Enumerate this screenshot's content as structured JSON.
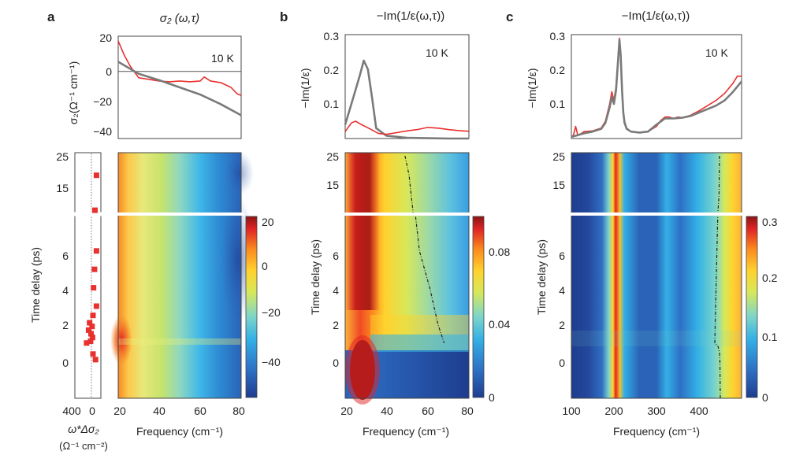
{
  "figure": {
    "panel_labels": [
      "a",
      "b",
      "c"
    ],
    "colorbar_a_ticks": [
      "20",
      "0",
      "−20",
      "−40"
    ],
    "colorbar_b_ticks": [
      "0.08",
      "0.04",
      "0"
    ],
    "colorbar_c_ticks": [
      "0.3",
      "0.2",
      "0.1",
      "0"
    ],
    "colors": {
      "red_trace": "#e8312f",
      "grey_trace": "#7a7a7a",
      "marker": "#e8312f",
      "break_line": "#ffffff",
      "colormap": [
        "#1e3d8f",
        "#2e6fc4",
        "#33b0e6",
        "#7fd6c8",
        "#d6e85a",
        "#ffd22e",
        "#fb8a1e",
        "#e02424",
        "#8c1515"
      ]
    }
  },
  "chart_data": [
    {
      "panel": "a",
      "type": "line",
      "title": "σ₂ (ω,τ)",
      "annotation": "10 K",
      "ylabel": "σ₂(Ω⁻¹ cm⁻¹)",
      "xlim": [
        20,
        80
      ],
      "ylim": [
        -42,
        22
      ],
      "yticks": [
        "20",
        "0",
        "−20",
        "−40"
      ],
      "hline": 0,
      "series": [
        {
          "color": "red",
          "x": [
            20,
            23,
            26,
            30,
            35,
            40,
            45,
            50,
            55,
            60,
            62,
            65,
            70,
            75,
            78,
            80
          ],
          "y": [
            19,
            10,
            3,
            -4,
            -5,
            -6,
            -6.5,
            -6,
            -6.5,
            -6,
            -3.5,
            -6,
            -7,
            -10,
            -14,
            -15
          ]
        },
        {
          "color": "grey",
          "x": [
            20,
            30,
            40,
            50,
            60,
            70,
            80
          ],
          "y": [
            6,
            -1.5,
            -5.5,
            -10,
            -14.5,
            -20.5,
            -27.5
          ]
        }
      ]
    },
    {
      "panel": "a-left",
      "type": "scatter",
      "xlabel": "ω*Δσ₂",
      "xlabel2": "(Ω⁻¹ cm⁻²)",
      "ylabel": "Time delay (ps)",
      "xticks": [
        "400",
        "0"
      ],
      "yticks_lower": [
        "0",
        "2",
        "4",
        "6"
      ],
      "yticks_upper": [
        "15",
        "25"
      ],
      "xlim": [
        450,
        -80
      ],
      "points": [
        {
          "x": 10,
          "y": 20
        },
        {
          "x": 40,
          "y": 11
        },
        {
          "x": 10,
          "y": 6
        },
        {
          "x": 50,
          "y": 5
        },
        {
          "x": 10,
          "y": 3
        },
        {
          "x": 70,
          "y": 4
        },
        {
          "x": 80,
          "y": 2.5
        },
        {
          "x": 150,
          "y": 2.1
        },
        {
          "x": 100,
          "y": 1.9
        },
        {
          "x": 170,
          "y": 1.7
        },
        {
          "x": 120,
          "y": 1.5
        },
        {
          "x": 90,
          "y": 1.3
        },
        {
          "x": 130,
          "y": 1.1
        },
        {
          "x": 210,
          "y": 1.0
        },
        {
          "x": 80,
          "y": 0.4
        },
        {
          "x": 30,
          "y": 0.1
        }
      ]
    },
    {
      "panel": "a-map",
      "type": "heatmap",
      "xlabel": "Frequency (cm⁻¹)",
      "xticks": [
        "20",
        "40",
        "60",
        "80"
      ],
      "xlim": [
        20,
        80
      ],
      "zlim": [
        -55,
        22
      ]
    },
    {
      "panel": "b",
      "type": "line",
      "title": "−Im(1/ε(ω,τ))",
      "annotation": "10 K",
      "ylabel": "−Im(1/ε)",
      "xlim": [
        20,
        80
      ],
      "ylim": [
        0,
        0.3
      ],
      "yticks": [
        "0.3",
        "0.2",
        "0.1"
      ],
      "series": [
        {
          "color": "grey",
          "x": [
            20,
            24,
            27,
            29,
            31,
            33,
            35,
            40,
            50,
            60,
            70,
            80
          ],
          "y": [
            0.04,
            0.12,
            0.18,
            0.225,
            0.2,
            0.12,
            0.03,
            0.008,
            0.002,
            0.001,
            0,
            0
          ]
        },
        {
          "color": "red",
          "x": [
            20,
            23,
            25,
            28,
            32,
            36,
            40,
            50,
            55,
            60,
            65,
            70,
            75,
            80
          ],
          "y": [
            0.02,
            0.045,
            0.05,
            0.04,
            0.028,
            0.015,
            0.012,
            0.022,
            0.026,
            0.032,
            0.03,
            0.026,
            0.023,
            0.021
          ]
        }
      ]
    },
    {
      "panel": "b-map",
      "type": "heatmap",
      "xlabel": "Frequency (cm⁻¹)",
      "ylabel": "Time delay (ps)",
      "xticks": [
        "20",
        "40",
        "60",
        "80"
      ],
      "yticks_lower": [
        "0",
        "2",
        "4",
        "6"
      ],
      "yticks_upper": [
        "15",
        "25"
      ],
      "xlim": [
        20,
        80
      ],
      "zlim": [
        0,
        0.1
      ],
      "colorbar_ticks": [
        "0",
        "0.04",
        "0.08"
      ],
      "ridge": [
        {
          "t": 25,
          "f": 49
        },
        {
          "t": 20,
          "f": 51
        },
        {
          "t": 15,
          "f": 52
        },
        {
          "t": 10,
          "f": 53
        },
        {
          "t": 8,
          "f": 54
        },
        {
          "t": 6,
          "f": 56
        },
        {
          "t": 4,
          "f": 61
        },
        {
          "t": 2,
          "f": 65
        },
        {
          "t": 1,
          "f": 68
        }
      ]
    },
    {
      "panel": "c",
      "type": "line",
      "title": "−Im(1/ε(ω,τ))",
      "annotation": "10 K",
      "ylabel": "−Im(1/ε)",
      "xlim": [
        100,
        500
      ],
      "ylim": [
        0,
        0.3
      ],
      "yticks": [
        "0.3",
        "0.2",
        "0.1"
      ],
      "series": [
        {
          "color": "red",
          "x": [
            100,
            105,
            110,
            115,
            120,
            130,
            150,
            170,
            180,
            190,
            195,
            200,
            205,
            210,
            213,
            216,
            219,
            222,
            225,
            230,
            240,
            260,
            280,
            300,
            310,
            320,
            330,
            340,
            350,
            360,
            380,
            400,
            420,
            440,
            460,
            480,
            490,
            500
          ],
          "y": [
            0.005,
            0.01,
            0.035,
            0.01,
            0.012,
            0.02,
            0.022,
            0.03,
            0.05,
            0.1,
            0.135,
            0.11,
            0.15,
            0.24,
            0.29,
            0.25,
            0.15,
            0.08,
            0.05,
            0.03,
            0.02,
            0.018,
            0.02,
            0.035,
            0.052,
            0.062,
            0.062,
            0.058,
            0.062,
            0.06,
            0.067,
            0.08,
            0.095,
            0.11,
            0.13,
            0.16,
            0.18,
            0.18
          ]
        },
        {
          "color": "grey",
          "x": [
            100,
            110,
            130,
            150,
            170,
            180,
            190,
            195,
            200,
            205,
            210,
            213,
            216,
            219,
            222,
            225,
            230,
            240,
            260,
            280,
            300,
            320,
            340,
            360,
            380,
            400,
            420,
            440,
            460,
            480,
            500
          ],
          "y": [
            0.005,
            0.008,
            0.015,
            0.02,
            0.028,
            0.045,
            0.09,
            0.12,
            0.1,
            0.14,
            0.23,
            0.285,
            0.24,
            0.14,
            0.075,
            0.045,
            0.028,
            0.02,
            0.017,
            0.02,
            0.04,
            0.058,
            0.058,
            0.06,
            0.065,
            0.075,
            0.085,
            0.095,
            0.11,
            0.135,
            0.165
          ]
        }
      ]
    },
    {
      "panel": "c-map",
      "type": "heatmap",
      "xlabel": "Frequency (cm⁻¹)",
      "ylabel": "Time delay (ps)",
      "xticks": [
        "100",
        "200",
        "300",
        "400"
      ],
      "yticks_lower": [
        "0",
        "2",
        "4",
        "6"
      ],
      "yticks_upper": [
        "15",
        "25"
      ],
      "xlim": [
        100,
        500
      ],
      "zlim": [
        0,
        0.3
      ],
      "colorbar_ticks": [
        "0",
        "0.1",
        "0.2",
        "0.3"
      ],
      "ridge": [
        {
          "t": 25,
          "f": 448
        },
        {
          "t": 15,
          "f": 447
        },
        {
          "t": 8,
          "f": 444
        },
        {
          "t": 6,
          "f": 442
        },
        {
          "t": 4,
          "f": 440
        },
        {
          "t": 2,
          "f": 438
        },
        {
          "t": 1,
          "f": 437
        },
        {
          "t": 0.8,
          "f": 445
        },
        {
          "t": 0.5,
          "f": 448
        },
        {
          "t": 0,
          "f": 449
        },
        {
          "t": -2,
          "f": 450
        }
      ]
    }
  ]
}
